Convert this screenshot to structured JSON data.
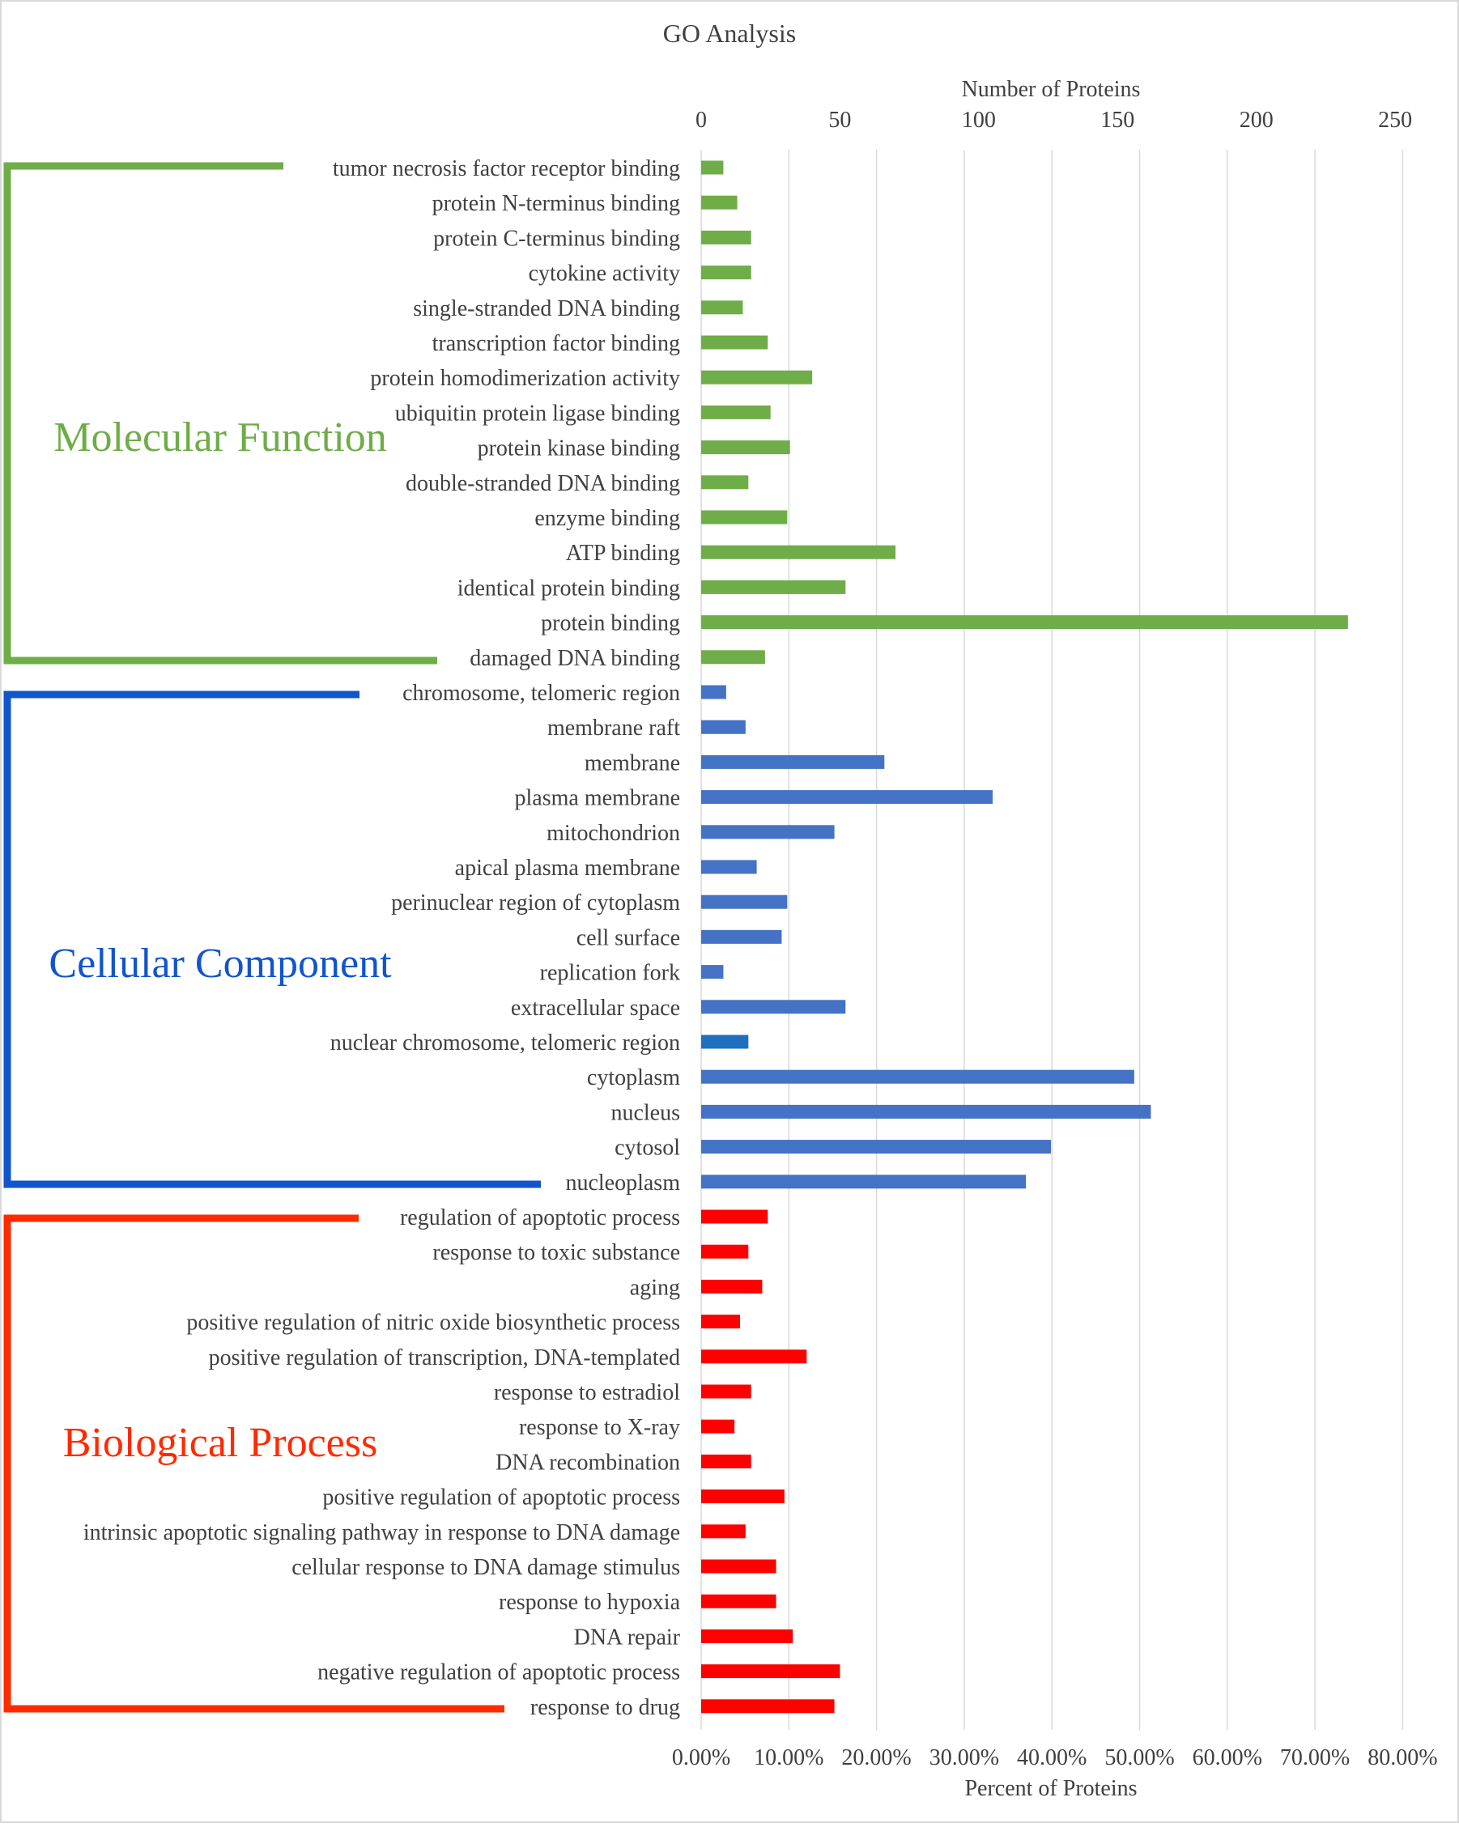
{
  "chart_data": {
    "type": "bar",
    "orientation": "horizontal",
    "title": "GO Analysis",
    "top_axis": {
      "label": "Number of Proteins",
      "range": [
        0,
        250
      ],
      "ticks": [
        "0",
        "50",
        "100",
        "150",
        "200",
        "250"
      ]
    },
    "bottom_axis": {
      "label": "Percent of Proteins",
      "range": [
        0,
        0.8
      ],
      "ticks": [
        "0.00%",
        "10.00%",
        "20.00%",
        "30.00%",
        "40.00%",
        "50.00%",
        "60.00%",
        "70.00%",
        "80.00%"
      ]
    },
    "grid": true,
    "groups": [
      {
        "name": "Molecular Function",
        "color": "#6ead47",
        "categories": [
          "tumor necrosis factor receptor binding",
          "protein N-terminus binding",
          "protein C-terminus binding",
          "cytokine activity",
          "single-stranded DNA binding",
          "transcription factor binding",
          "protein homodimerization activity",
          "ubiquitin protein ligase binding",
          "protein kinase binding",
          "double-stranded DNA binding",
          "enzyme binding",
          "ATP binding",
          "identical protein binding",
          "protein binding",
          "damaged DNA binding"
        ],
        "values": [
          8,
          13,
          18,
          18,
          15,
          24,
          40,
          25,
          32,
          17,
          31,
          70,
          52,
          233,
          23
        ]
      },
      {
        "name": "Cellular Component",
        "color": "#4472c4",
        "categories": [
          "chromosome, telomeric region",
          "membrane raft",
          "membrane",
          "plasma membrane",
          "mitochondrion",
          "apical plasma membrane",
          "perinuclear region of cytoplasm",
          "cell surface",
          "replication fork",
          "extracellular space",
          "nuclear chromosome, telomeric region",
          "cytoplasm",
          "nucleus",
          "cytosol",
          "nucleoplasm"
        ],
        "values": [
          9,
          16,
          66,
          105,
          48,
          20,
          31,
          29,
          8,
          52,
          17,
          156,
          162,
          126,
          117
        ],
        "highlight": {
          "category": "nuclear chromosome, telomeric region",
          "color": "#1f6fbf"
        }
      },
      {
        "name": "Biological Process",
        "color": "#fe0000",
        "categories": [
          "regulation of apoptotic process",
          "response to toxic substance",
          "aging",
          "positive regulation of nitric oxide biosynthetic process",
          "positive regulation of transcription, DNA-templated",
          "response to estradiol",
          "response to X-ray",
          "DNA recombination",
          "positive regulation of apoptotic process",
          "intrinsic apoptotic signaling pathway in response to DNA damage",
          "cellular response to DNA damage stimulus",
          "response to hypoxia",
          "DNA repair",
          "negative regulation of apoptotic process",
          "response to drug"
        ],
        "values": [
          24,
          17,
          22,
          14,
          38,
          18,
          12,
          18,
          30,
          16,
          27,
          27,
          33,
          50,
          48
        ]
      }
    ]
  },
  "group_labels": {
    "molecular": {
      "text": "Molecular Function",
      "color": "#6ead47"
    },
    "cellular": {
      "text": "Cellular Component",
      "color": "#1155cc"
    },
    "biological": {
      "text": "Biological Process",
      "color": "#ff2a00"
    }
  }
}
